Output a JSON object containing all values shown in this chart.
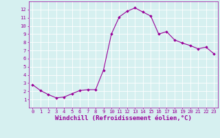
{
  "x": [
    0,
    1,
    2,
    3,
    4,
    5,
    6,
    7,
    8,
    9,
    10,
    11,
    12,
    13,
    14,
    15,
    16,
    17,
    18,
    19,
    20,
    21,
    22,
    23
  ],
  "y": [
    2.8,
    2.1,
    1.6,
    1.2,
    1.3,
    1.7,
    2.1,
    2.2,
    2.2,
    4.6,
    9.0,
    11.1,
    11.8,
    12.2,
    11.7,
    11.2,
    9.0,
    9.3,
    8.3,
    7.9,
    7.6,
    7.2,
    7.4,
    6.6
  ],
  "line_color": "#990099",
  "marker": "D",
  "marker_size": 1.8,
  "bg_color": "#d6f0f0",
  "grid_color": "#ffffff",
  "xlabel": "Windchill (Refroidissement éolien,°C)",
  "xlabel_color": "#990099",
  "tick_color": "#990099",
  "xlim": [
    -0.5,
    23.5
  ],
  "ylim": [
    0,
    13
  ],
  "yticks": [
    1,
    2,
    3,
    4,
    5,
    6,
    7,
    8,
    9,
    10,
    11,
    12
  ],
  "xticks": [
    0,
    1,
    2,
    3,
    4,
    5,
    6,
    7,
    8,
    9,
    10,
    11,
    12,
    13,
    14,
    15,
    16,
    17,
    18,
    19,
    20,
    21,
    22,
    23
  ],
  "tick_fontsize": 5.2,
  "xlabel_fontsize": 6.5,
  "linewidth": 0.8
}
